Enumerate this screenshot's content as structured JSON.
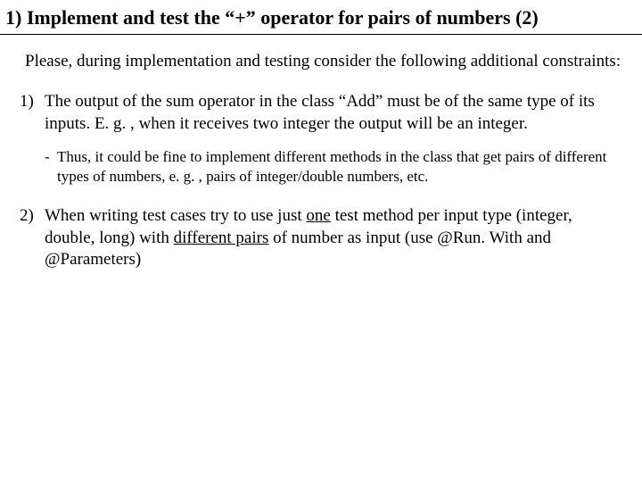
{
  "title": "1) Implement and test the “+” operator for pairs of numbers (2)",
  "intro": "Please, during implementation and testing consider the following additional constraints:",
  "item1_num": "1)",
  "item1_text": "The output of the sum operator in the class “Add” must be of the same type of its inputs. E. g. , when it receives two integer the output will be an integer.",
  "sub_mark": "-",
  "sub_text": "Thus, it could be fine to implement different methods in the class that get pairs of different types of numbers, e. g. , pairs of integer/double numbers, etc.",
  "item2_num": "2)",
  "item2_a": "When writing test cases try to use just ",
  "item2_one": "one",
  "item2_b": " test method per input type (integer, double, long) with ",
  "item2_diff": "different pairs",
  "item2_c": " of number as input (use @Run. With and @Parameters)"
}
